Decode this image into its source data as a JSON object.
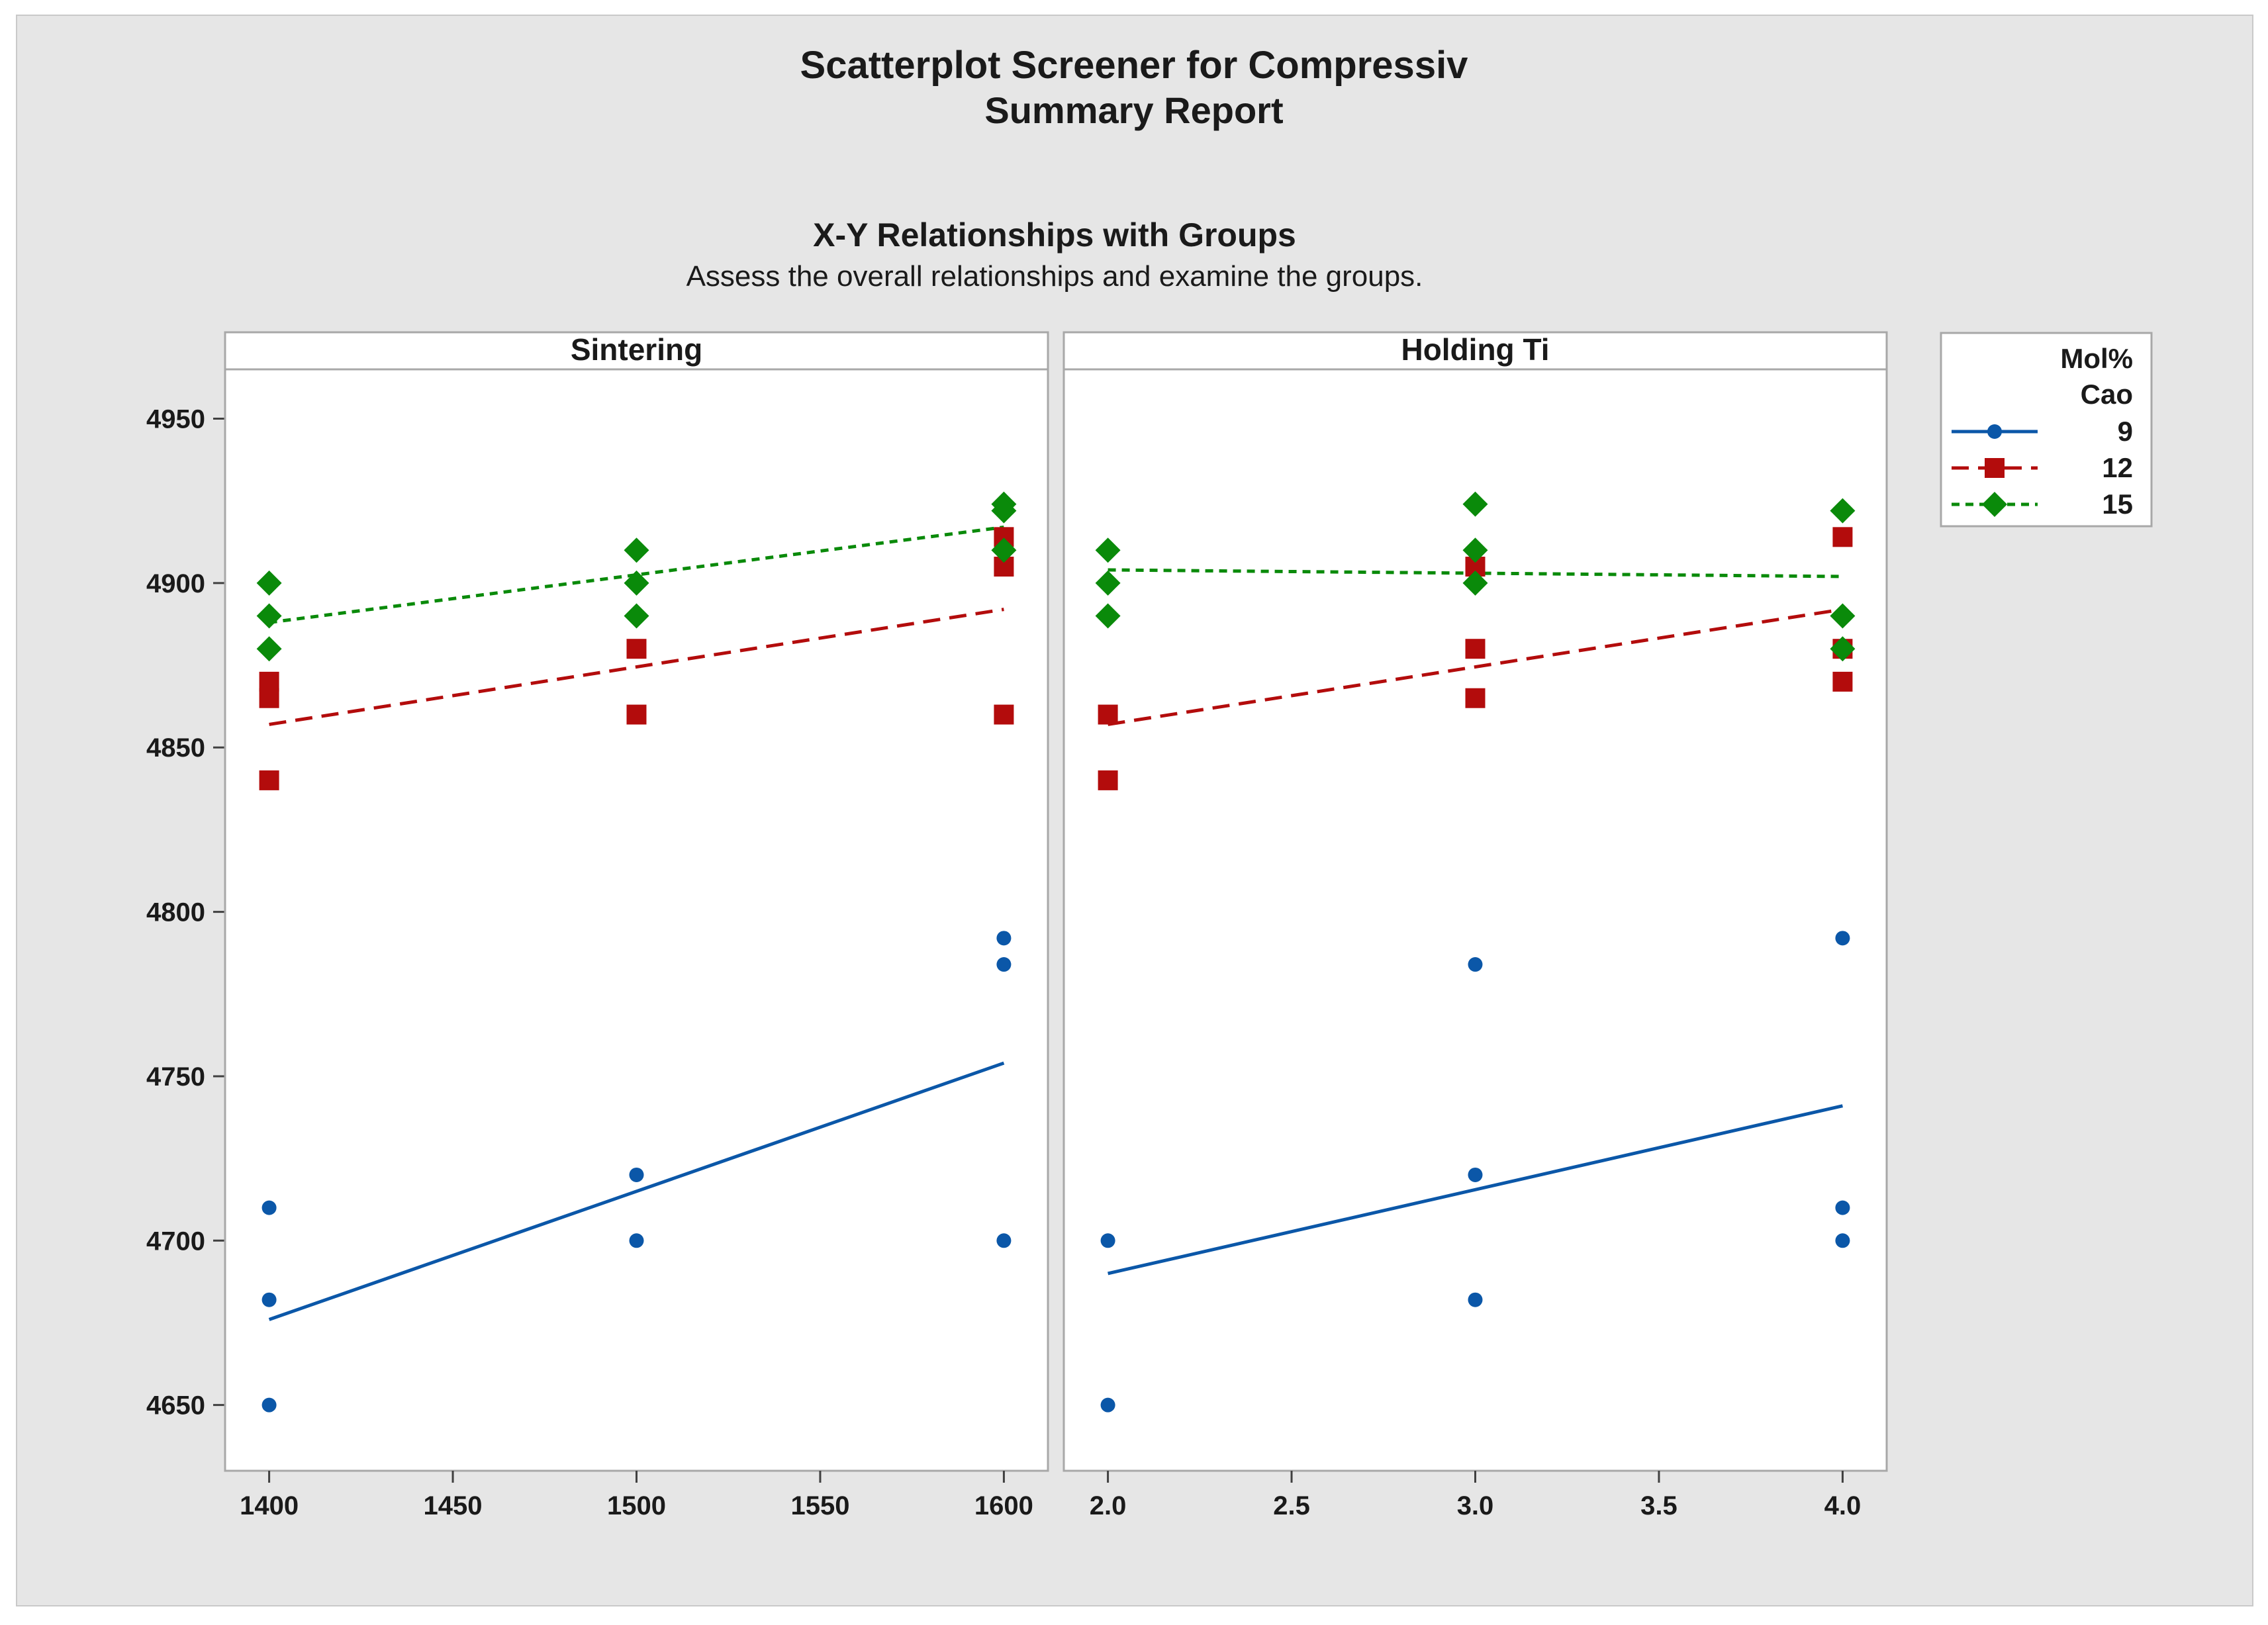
{
  "report": {
    "title": "Scatterplot Screener for Compressiv",
    "subtitle": "Summary Report",
    "section_title": "X-Y Relationships with Groups",
    "section_subtitle": "Assess the overall relationships and examine the groups."
  },
  "legend": {
    "title_line1": "Mol%",
    "title_line2": "Cao"
  },
  "colors": {
    "g9": "#0b57a8",
    "g12": "#b30c0c",
    "g15": "#0a8a0a",
    "panel_bg": "#ffffff",
    "frame": "#a8a8a8"
  },
  "chart_data": {
    "type": "scatter",
    "ylim": [
      4630,
      4965
    ],
    "yticks": [
      4650,
      4700,
      4750,
      4800,
      4850,
      4900,
      4950
    ],
    "groups": [
      {
        "name": "9",
        "marker": "circle",
        "line": "solid",
        "color_key": "g9"
      },
      {
        "name": "12",
        "marker": "square",
        "line": "dashed",
        "color_key": "g12"
      },
      {
        "name": "15",
        "marker": "diamond",
        "line": "dotted",
        "color_key": "g15"
      }
    ],
    "panels": [
      {
        "title": "Sintering",
        "xlim": [
          1388,
          1612
        ],
        "xticks": [
          "1400",
          "1450",
          "1500",
          "1550",
          "1600"
        ],
        "xtick_values": [
          1400,
          1450,
          1500,
          1550,
          1600
        ],
        "series": [
          {
            "group": "9",
            "points": [
              [
                1400,
                4710
              ],
              [
                1400,
                4682
              ],
              [
                1400,
                4650
              ],
              [
                1500,
                4720
              ],
              [
                1500,
                4700
              ],
              [
                1600,
                4792
              ],
              [
                1600,
                4784
              ],
              [
                1600,
                4700
              ]
            ],
            "fit": [
              [
                1400,
                4676
              ],
              [
                1600,
                4754
              ]
            ]
          },
          {
            "group": "12",
            "points": [
              [
                1400,
                4870
              ],
              [
                1400,
                4865
              ],
              [
                1400,
                4840
              ],
              [
                1500,
                4880
              ],
              [
                1500,
                4860
              ],
              [
                1600,
                4914
              ],
              [
                1600,
                4905
              ],
              [
                1600,
                4860
              ]
            ],
            "fit": [
              [
                1400,
                4857
              ],
              [
                1600,
                4892
              ]
            ]
          },
          {
            "group": "15",
            "points": [
              [
                1400,
                4900
              ],
              [
                1400,
                4890
              ],
              [
                1400,
                4880
              ],
              [
                1500,
                4910
              ],
              [
                1500,
                4900
              ],
              [
                1500,
                4890
              ],
              [
                1600,
                4924
              ],
              [
                1600,
                4922
              ],
              [
                1600,
                4910
              ]
            ],
            "fit": [
              [
                1400,
                4888
              ],
              [
                1600,
                4917
              ]
            ]
          }
        ]
      },
      {
        "title": "Holding Ti",
        "xlim": [
          1.88,
          4.12
        ],
        "xticks": [
          "2.0",
          "2.5",
          "3.0",
          "3.5",
          "4.0"
        ],
        "xtick_values": [
          2.0,
          2.5,
          3.0,
          3.5,
          4.0
        ],
        "series": [
          {
            "group": "9",
            "points": [
              [
                2,
                4700
              ],
              [
                2,
                4650
              ],
              [
                3,
                4784
              ],
              [
                3,
                4720
              ],
              [
                3,
                4682
              ],
              [
                4,
                4792
              ],
              [
                4,
                4710
              ],
              [
                4,
                4700
              ]
            ],
            "fit": [
              [
                2,
                4690
              ],
              [
                4,
                4741
              ]
            ]
          },
          {
            "group": "12",
            "points": [
              [
                2,
                4860
              ],
              [
                2,
                4840
              ],
              [
                3,
                4905
              ],
              [
                3,
                4880
              ],
              [
                3,
                4865
              ],
              [
                4,
                4914
              ],
              [
                4,
                4880
              ],
              [
                4,
                4870
              ]
            ],
            "fit": [
              [
                2,
                4857
              ],
              [
                4,
                4892
              ]
            ]
          },
          {
            "group": "15",
            "points": [
              [
                2,
                4910
              ],
              [
                2,
                4900
              ],
              [
                2,
                4890
              ],
              [
                3,
                4924
              ],
              [
                3,
                4910
              ],
              [
                3,
                4900
              ],
              [
                4,
                4922
              ],
              [
                4,
                4890
              ],
              [
                4,
                4880
              ]
            ],
            "fit": [
              [
                2,
                4904
              ],
              [
                4,
                4902
              ]
            ]
          }
        ]
      }
    ]
  }
}
